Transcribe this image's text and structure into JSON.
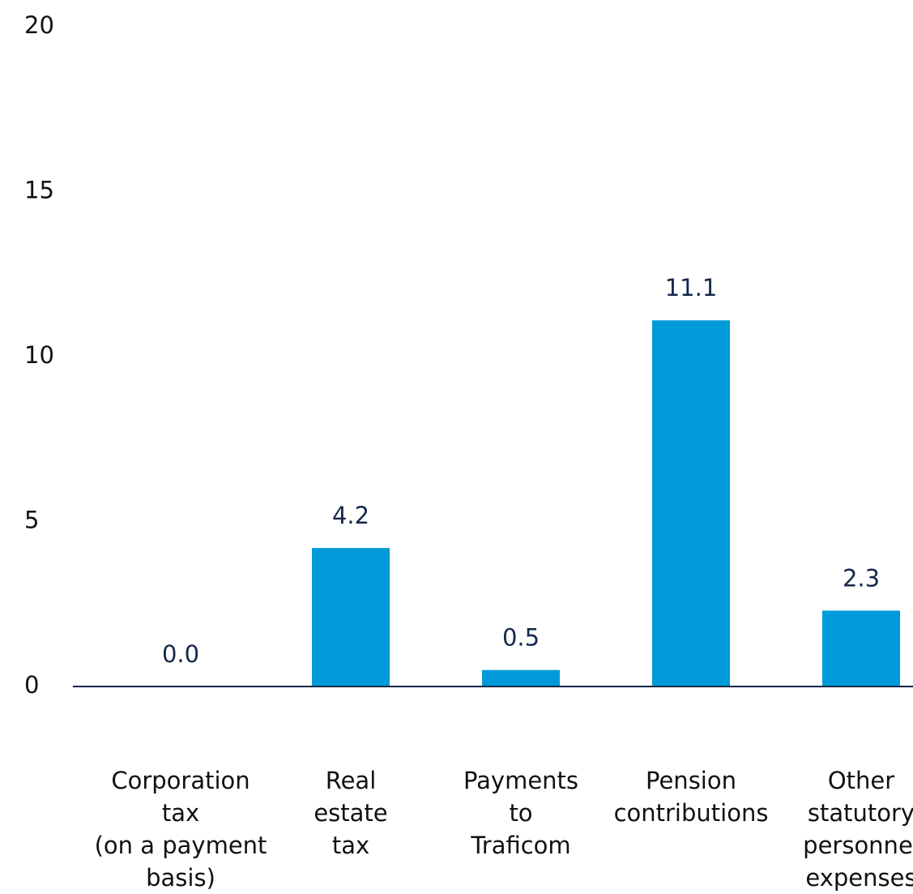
{
  "chart_data": {
    "type": "bar",
    "categories": [
      "Corporation\ntax\n(on a payment\nbasis)",
      "Real\nestate\ntax",
      "Payments\nto\nTraficom",
      "Pension\ncontributions",
      "Other\nstatutory\npersonnel\nexpenses"
    ],
    "values": [
      0.0,
      4.2,
      0.5,
      11.1,
      2.3
    ],
    "value_labels": [
      "0.0",
      "4.2",
      "0.5",
      "11.1",
      "2.3"
    ],
    "color": "#009ad8",
    "ylim": [
      0,
      20
    ],
    "yticks": [
      0,
      5,
      10,
      15,
      20
    ],
    "grid": false
  }
}
